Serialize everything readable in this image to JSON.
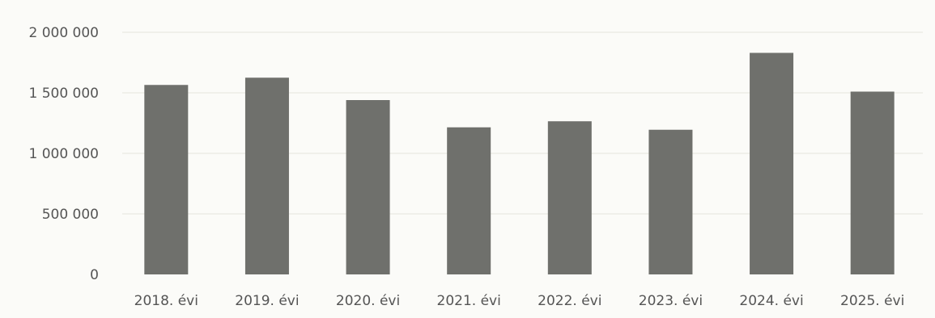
{
  "chart_data": {
    "type": "bar",
    "categories": [
      "2018. évi",
      "2019. évi",
      "2020. évi",
      "2021. évi",
      "2022. évi",
      "2023. évi",
      "2024. évi",
      "2025. évi"
    ],
    "values": [
      1565000,
      1625000,
      1440000,
      1215000,
      1265000,
      1195000,
      1830000,
      1510000
    ],
    "title": "",
    "xlabel": "",
    "ylabel": "",
    "ylim": [
      0,
      2000000
    ],
    "yticks": [
      0,
      500000,
      1000000,
      1500000,
      2000000
    ],
    "ytick_labels": [
      "0",
      "500 000",
      "1 000 000",
      "1 500 000",
      "2 000 000"
    ],
    "grid": true,
    "legend": "none",
    "colors": {
      "bar": "#6f706c",
      "grid": "#e4e4dc",
      "axis_text": "#555555"
    }
  }
}
